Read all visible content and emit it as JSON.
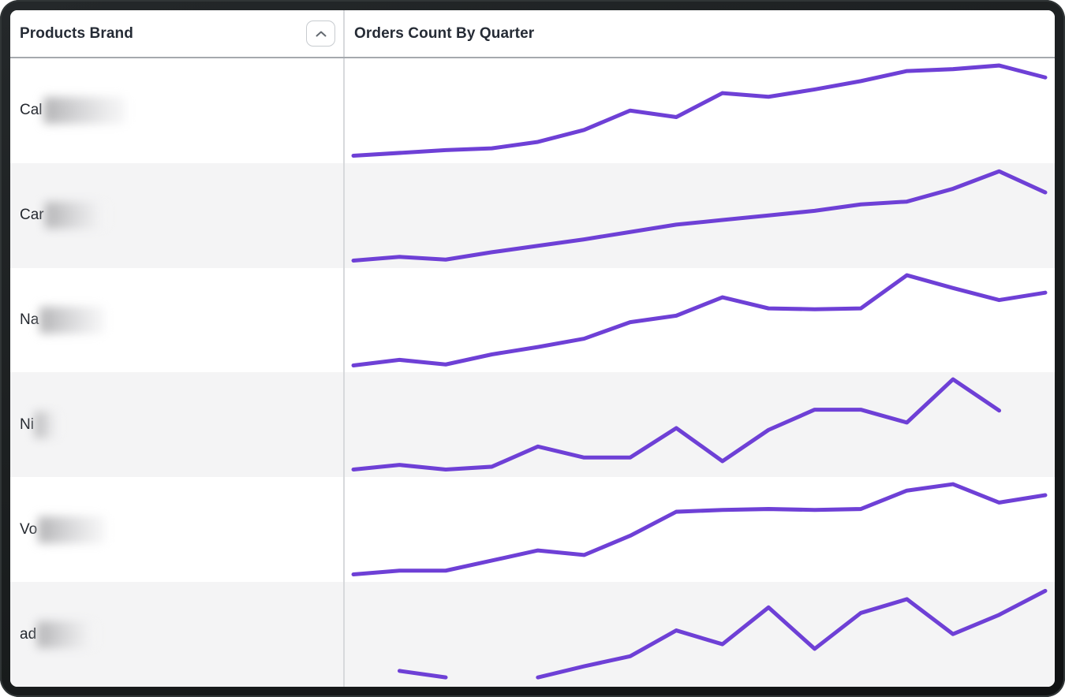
{
  "header": {
    "brand_column_label": "Products Brand",
    "chart_column_label": "Orders Count By Quarter",
    "sort_button": {
      "icon": "chevron-up-icon",
      "state": "ascending"
    }
  },
  "style": {
    "accent_purple": "#6e40d6",
    "row_alt_bg": "#f4f4f5",
    "column_divider": "#d7d9dc",
    "header_rule": "#a5a9ae",
    "text_dark": "#23272e",
    "frame_dark": "#1e2122"
  },
  "rows": [
    {
      "brand_prefix": "Cal",
      "redacted": true,
      "blur_width": 104
    },
    {
      "brand_prefix": "Car",
      "redacted": true,
      "blur_width": 78
    },
    {
      "brand_prefix": "Na",
      "redacted": true,
      "blur_width": 82
    },
    {
      "brand_prefix": "Ni",
      "redacted": true,
      "blur_width": 30
    },
    {
      "brand_prefix": "Vo",
      "redacted": true,
      "blur_width": 85
    },
    {
      "brand_prefix": "ad",
      "redacted": true,
      "blur_width": 74
    }
  ],
  "chart_data": {
    "type": "line",
    "title": "Orders Count By Quarter",
    "x_unit": "quarter-index",
    "x": [
      1,
      2,
      3,
      4,
      5,
      6,
      7,
      8,
      9,
      10,
      11,
      12,
      13,
      14,
      15,
      16
    ],
    "ylim": [
      0,
      100
    ],
    "value_unit": "relative-orders-count",
    "legend": "none",
    "grid": "off",
    "series": [
      {
        "name": "Cal… (redacted)",
        "values": [
          2,
          5,
          8,
          10,
          17,
          30,
          51,
          44,
          70,
          66,
          74,
          83,
          94,
          96,
          100,
          87
        ]
      },
      {
        "name": "Car… (redacted)",
        "values": [
          2,
          6,
          3,
          11,
          18,
          25,
          33,
          41,
          46,
          51,
          56,
          63,
          66,
          80,
          99,
          76
        ]
      },
      {
        "name": "Na… (redacted)",
        "values": [
          2,
          8,
          3,
          14,
          22,
          31,
          49,
          56,
          76,
          64,
          63,
          64,
          100,
          86,
          73,
          81
        ]
      },
      {
        "name": "Ni… (redacted)",
        "values": [
          2,
          7,
          2,
          5,
          27,
          15,
          15,
          47,
          11,
          45,
          67,
          67,
          53,
          100,
          66,
          null
        ]
      },
      {
        "name": "Vo… (redacted)",
        "values": [
          2,
          6,
          6,
          17,
          28,
          23,
          44,
          70,
          72,
          73,
          72,
          73,
          93,
          100,
          80,
          88
        ]
      },
      {
        "name": "ad… (redacted)",
        "values": [
          null,
          11,
          4,
          null,
          4,
          16,
          27,
          55,
          40,
          80,
          35,
          74,
          89,
          51,
          72,
          98
        ]
      }
    ]
  }
}
